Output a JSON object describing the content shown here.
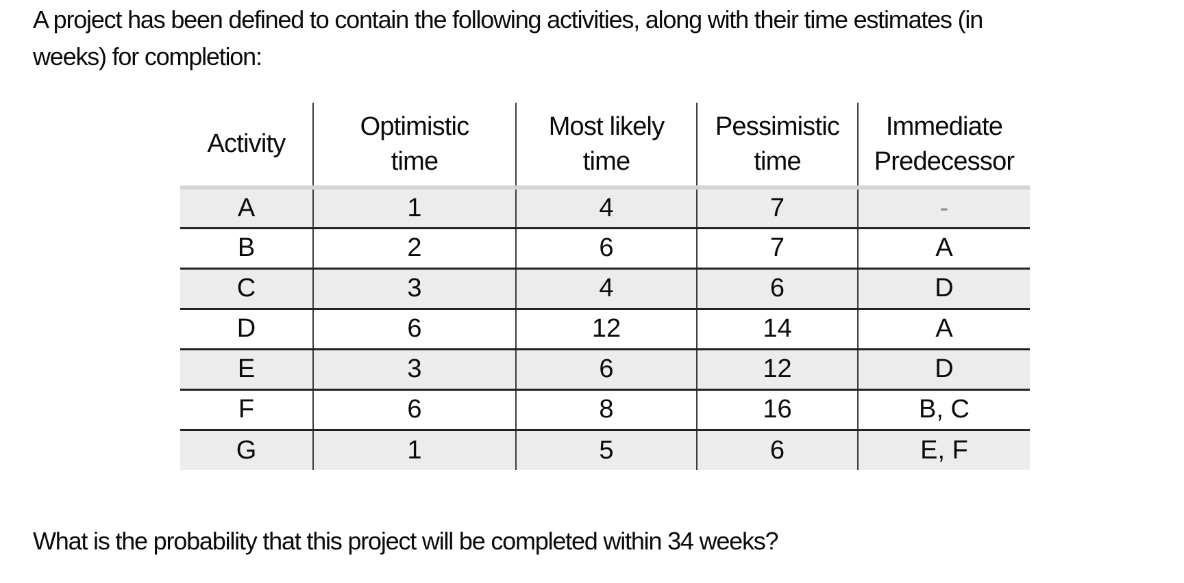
{
  "intro": {
    "text": "A project has been defined to contain the following activities, along with their time estimates (in\nweeks) for completion:"
  },
  "table": {
    "headers": [
      "Activity",
      "Optimistic\ntime",
      "Most likely\ntime",
      "Pessimistic\ntime",
      "Immediate\nPredecessor"
    ],
    "rows": [
      [
        "A",
        "1",
        "4",
        "7",
        "-"
      ],
      [
        "B",
        "2",
        "6",
        "7",
        "A"
      ],
      [
        "C",
        "3",
        "4",
        "6",
        "D"
      ],
      [
        "D",
        "6",
        "12",
        "14",
        "A"
      ],
      [
        "E",
        "3",
        "6",
        "12",
        "D"
      ],
      [
        "F",
        "6",
        "8",
        "16",
        "B, C"
      ],
      [
        "G",
        "1",
        "5",
        "6",
        "E, F"
      ]
    ]
  },
  "question": {
    "text": "What is the probability that this project will be completed within 34 weeks?"
  },
  "colors": {
    "row_shade": "#ececec",
    "header_rule": "#d4d4d4",
    "row_border": "#232323",
    "column_divider": "#3d3d3d",
    "muted_dash": "#888888",
    "text": "#0a0a0a",
    "background": "#ffffff"
  },
  "chart_data": {
    "type": "table",
    "title": "Project activities with time estimates (weeks)",
    "columns": [
      "Activity",
      "Optimistic time",
      "Most likely time",
      "Pessimistic time",
      "Immediate Predecessor"
    ],
    "records": [
      {
        "activity": "A",
        "optimistic": 1,
        "most_likely": 4,
        "pessimistic": 7,
        "predecessor": null
      },
      {
        "activity": "B",
        "optimistic": 2,
        "most_likely": 6,
        "pessimistic": 7,
        "predecessor": "A"
      },
      {
        "activity": "C",
        "optimistic": 3,
        "most_likely": 4,
        "pessimistic": 6,
        "predecessor": "D"
      },
      {
        "activity": "D",
        "optimistic": 6,
        "most_likely": 12,
        "pessimistic": 14,
        "predecessor": "A"
      },
      {
        "activity": "E",
        "optimistic": 3,
        "most_likely": 6,
        "pessimistic": 12,
        "predecessor": "D"
      },
      {
        "activity": "F",
        "optimistic": 6,
        "most_likely": 8,
        "pessimistic": 16,
        "predecessor": "B, C"
      },
      {
        "activity": "G",
        "optimistic": 1,
        "most_likely": 5,
        "pessimistic": 6,
        "predecessor": "E, F"
      }
    ]
  }
}
